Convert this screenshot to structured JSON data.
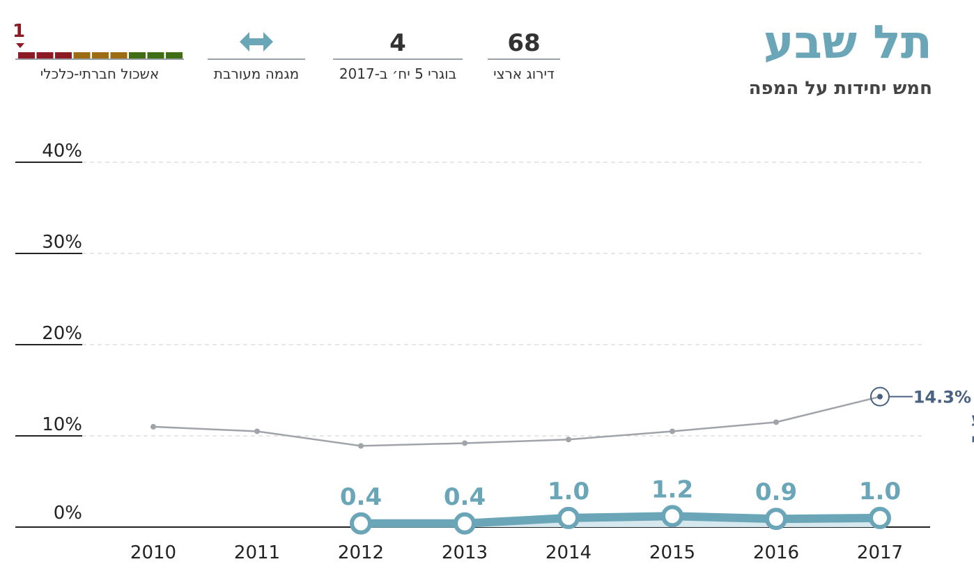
{
  "header": {
    "title": "תל שבע",
    "subtitle": "חמש יחידות על המפה",
    "stats": [
      {
        "value": "68",
        "label": "דירוג ארצי"
      },
      {
        "value": "4",
        "label": "בוגרי 5 יח׳ ב-2017"
      },
      {
        "icon": "double-arrow-icon",
        "label": "מגמה מעורבת"
      },
      {
        "value": "1",
        "label": "אשכול חברתי-כלכלי",
        "cluster_level": 1,
        "cluster_max": 10
      }
    ],
    "colors": {
      "title": "#6aa6b8",
      "cluster_low": "#8b1a24",
      "cluster_mid": "#9c6b12",
      "cluster_high": "#3f6e14"
    }
  },
  "chart_data": {
    "type": "line",
    "x": [
      2010,
      2011,
      2012,
      2013,
      2014,
      2015,
      2016,
      2017
    ],
    "ylim": [
      0,
      40
    ],
    "yticks": [
      "0%",
      "10%",
      "20%",
      "30%",
      "40%"
    ],
    "grid": true,
    "series": [
      {
        "name": "ממוצע ארצי",
        "values": [
          11.0,
          10.5,
          8.9,
          9.2,
          9.6,
          10.5,
          11.5,
          14.3
        ],
        "color": "#a0a4aa",
        "end_label": "14.3%",
        "label_line1": "ממוצע",
        "label_line2": "ארצי"
      },
      {
        "values": [
          null,
          null,
          0.4,
          0.4,
          1.0,
          1.2,
          0.9,
          1.0
        ],
        "labels": [
          null,
          null,
          "0.4",
          "0.4",
          "1.0",
          "1.2",
          "0.9",
          "1.0"
        ],
        "color": "#6aa6b8"
      }
    ]
  }
}
